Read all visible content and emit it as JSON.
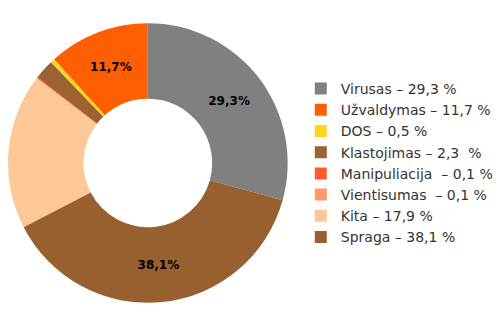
{
  "chart_data": {
    "type": "pie",
    "categories": [
      "Virusas – 29,3 %",
      "Užvaldymas – 11,7 %",
      "DOS – 0,5 %",
      "Klastojimas – 2,3  %",
      "Manipuliacija  – 0,1 %",
      "Vientisumas  – 0,1 %",
      "Kita – 17,9 %",
      "Spraga – 38,1 %"
    ],
    "values": [
      29.3,
      11.7,
      0.5,
      2.3,
      0.1,
      0.1,
      17.9,
      38.1
    ],
    "value_labels": [
      "29,3%",
      "11,7%",
      null,
      null,
      null,
      null,
      null,
      "38,1%"
    ],
    "colors": [
      "#808080",
      "#ff5f00",
      "#ffd320",
      "#9c6231",
      "#ff5c2a",
      "#ff9a6c",
      "#fdc895",
      "#98602e"
    ],
    "data_labels": true,
    "legend": "right"
  }
}
